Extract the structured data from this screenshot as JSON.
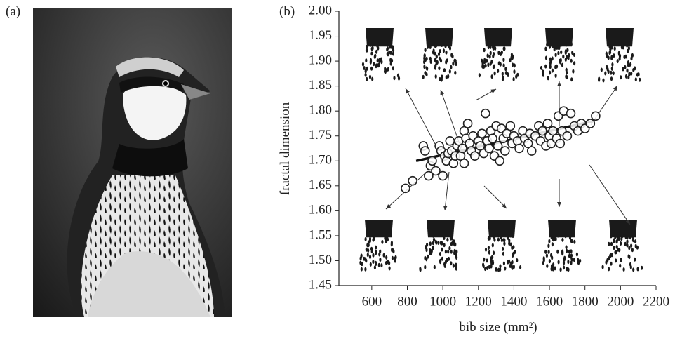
{
  "panels": [
    "(a)",
    "(b)"
  ],
  "chart_data": {
    "type": "scatter",
    "xlabel": "bib size (mm²)",
    "ylabel": "fractal dimension",
    "xlim": [
      415,
      2200
    ],
    "ylim": [
      1.45,
      2.0
    ],
    "xticks": [
      600,
      800,
      1000,
      1200,
      1400,
      1600,
      1800,
      2000,
      2200
    ],
    "yticks": [
      1.45,
      {
        "value": 1.5,
        "label": "1.50"
      },
      1.55,
      {
        "value": 1.6,
        "label": "1.60"
      },
      1.65,
      {
        "value": 1.7,
        "label": "1.70"
      },
      1.75,
      {
        "value": 1.8,
        "label": "1.80"
      },
      1.85,
      {
        "value": 1.9,
        "label": "1.90"
      },
      1.95,
      {
        "value": 2.0,
        "label": "2.00"
      }
    ],
    "x": [
      790,
      830,
      890,
      900,
      920,
      930,
      940,
      960,
      980,
      990,
      1000,
      1010,
      1020,
      1030,
      1040,
      1050,
      1060,
      1070,
      1080,
      1090,
      1100,
      1110,
      1120,
      1120,
      1130,
      1140,
      1150,
      1160,
      1170,
      1180,
      1200,
      1210,
      1220,
      1230,
      1240,
      1250,
      1260,
      1270,
      1280,
      1290,
      1300,
      1310,
      1320,
      1330,
      1340,
      1350,
      1360,
      1380,
      1390,
      1400,
      1420,
      1430,
      1450,
      1460,
      1480,
      1490,
      1500,
      1520,
      1540,
      1550,
      1560,
      1580,
      1590,
      1600,
      1610,
      1620,
      1640,
      1650,
      1660,
      1670,
      1680,
      1700,
      1720,
      1740,
      1760,
      1780,
      1800,
      1830,
      1860
    ],
    "y": [
      1.645,
      1.66,
      1.73,
      1.72,
      1.67,
      1.69,
      1.7,
      1.68,
      1.73,
      1.72,
      1.67,
      1.71,
      1.7,
      1.715,
      1.74,
      1.72,
      1.695,
      1.71,
      1.73,
      1.74,
      1.71,
      1.725,
      1.695,
      1.76,
      1.745,
      1.775,
      1.735,
      1.72,
      1.75,
      1.71,
      1.74,
      1.73,
      1.755,
      1.715,
      1.795,
      1.74,
      1.725,
      1.76,
      1.745,
      1.71,
      1.77,
      1.73,
      1.7,
      1.765,
      1.745,
      1.72,
      1.755,
      1.77,
      1.735,
      1.75,
      1.74,
      1.725,
      1.76,
      1.745,
      1.735,
      1.755,
      1.72,
      1.75,
      1.77,
      1.74,
      1.76,
      1.73,
      1.775,
      1.75,
      1.735,
      1.76,
      1.745,
      1.79,
      1.735,
      1.76,
      1.8,
      1.75,
      1.795,
      1.77,
      1.76,
      1.775,
      1.765,
      1.775,
      1.79
    ],
    "fit": {
      "x": [
        850,
        1850
      ],
      "y": [
        1.7,
        1.78
      ]
    },
    "color": "#222222"
  }
}
